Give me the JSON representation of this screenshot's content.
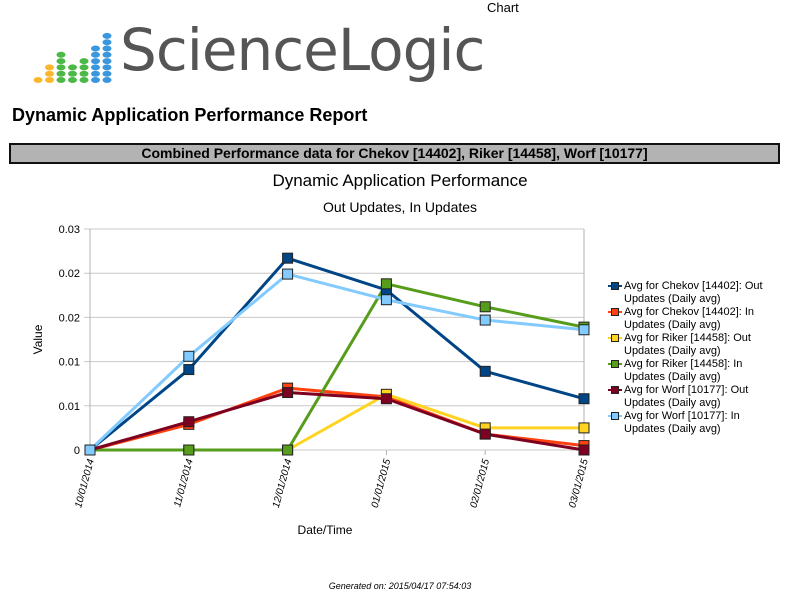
{
  "page": {
    "top_label": "Chart",
    "logo_text": "ScienceLogic",
    "report_title": "Dynamic Application Performance Report",
    "section_header": "Combined Performance data for Chekov [14402], Riker [14458], Worf [10177]",
    "footer": "Generated on: 2015/04/17  07:54:03"
  },
  "logo_dots": [
    {
      "color": "#fbb72b",
      "count": 1
    },
    {
      "color": "#fbb72b",
      "count": 3
    },
    {
      "color": "#4cb848",
      "count": 5
    },
    {
      "color": "#4cb848",
      "count": 3
    },
    {
      "color": "#4cb848",
      "count": 4
    },
    {
      "color": "#3a97dd",
      "count": 6
    },
    {
      "color": "#3a97dd",
      "count": 8
    }
  ],
  "chart_data": {
    "type": "line",
    "title": "Dynamic Application Performance",
    "subtitle": "Out Updates, In Updates",
    "xlabel": "Date/Time",
    "ylabel": "Value",
    "ylim": [
      0,
      0.025
    ],
    "yticks": [
      0,
      0.005,
      0.01,
      0.015,
      0.02,
      0.025
    ],
    "ytick_labels": [
      "0",
      "0.01",
      "0.01",
      "0.02",
      "0.02",
      "0.03"
    ],
    "grid": true,
    "legend_position": "right",
    "categories": [
      "10/01/2014",
      "11/01/2014",
      "12/01/2014",
      "01/01/2015",
      "02/01/2015",
      "03/01/2015"
    ],
    "series": [
      {
        "name": "Avg for Chekov [14402]: Out Updates  (Daily avg)",
        "color": "#004586",
        "values": [
          0,
          0.0091,
          0.0217,
          0.0181,
          0.0089,
          0.0058
        ]
      },
      {
        "name": "Avg for Chekov [14402]: In Updates  (Daily avg)",
        "color": "#ff420e",
        "values": [
          0,
          0.0029,
          0.007,
          0.006,
          0.0018,
          0.0005
        ]
      },
      {
        "name": "Avg for Riker [14458]: Out Updates  (Daily avg)",
        "color": "#ffd320",
        "values": [
          0,
          0,
          0,
          0.0063,
          0.0025,
          0.0025
        ]
      },
      {
        "name": "Avg for Riker [14458]: In Updates  (Daily avg)",
        "color": "#579d1c",
        "values": [
          0,
          0,
          0,
          0.0188,
          0.0162,
          0.0139
        ]
      },
      {
        "name": "Avg for Worf [10177]: Out Updates  (Daily avg)",
        "color": "#7e0021",
        "values": [
          0,
          0.0032,
          0.0065,
          0.0058,
          0.0018,
          0
        ]
      },
      {
        "name": "Avg for Worf [10177]: In Updates  (Daily avg)",
        "color": "#83caff",
        "values": [
          0,
          0.0106,
          0.0199,
          0.017,
          0.0147,
          0.0136
        ]
      }
    ],
    "legend": [
      {
        "line1": "Avg for Chekov [14402]: Out",
        "line2": "Updates  (Daily avg)"
      },
      {
        "line1": "Avg for Chekov [14402]: In",
        "line2": "Updates  (Daily avg)"
      },
      {
        "line1": "Avg for Riker [14458]: Out",
        "line2": "Updates  (Daily avg)"
      },
      {
        "line1": "Avg for Riker [14458]: In",
        "line2": "Updates  (Daily avg)"
      },
      {
        "line1": "Avg for Worf [10177]: Out",
        "line2": "Updates  (Daily avg)"
      },
      {
        "line1": "Avg for Worf [10177]: In",
        "line2": "Updates  (Daily avg)"
      }
    ]
  }
}
